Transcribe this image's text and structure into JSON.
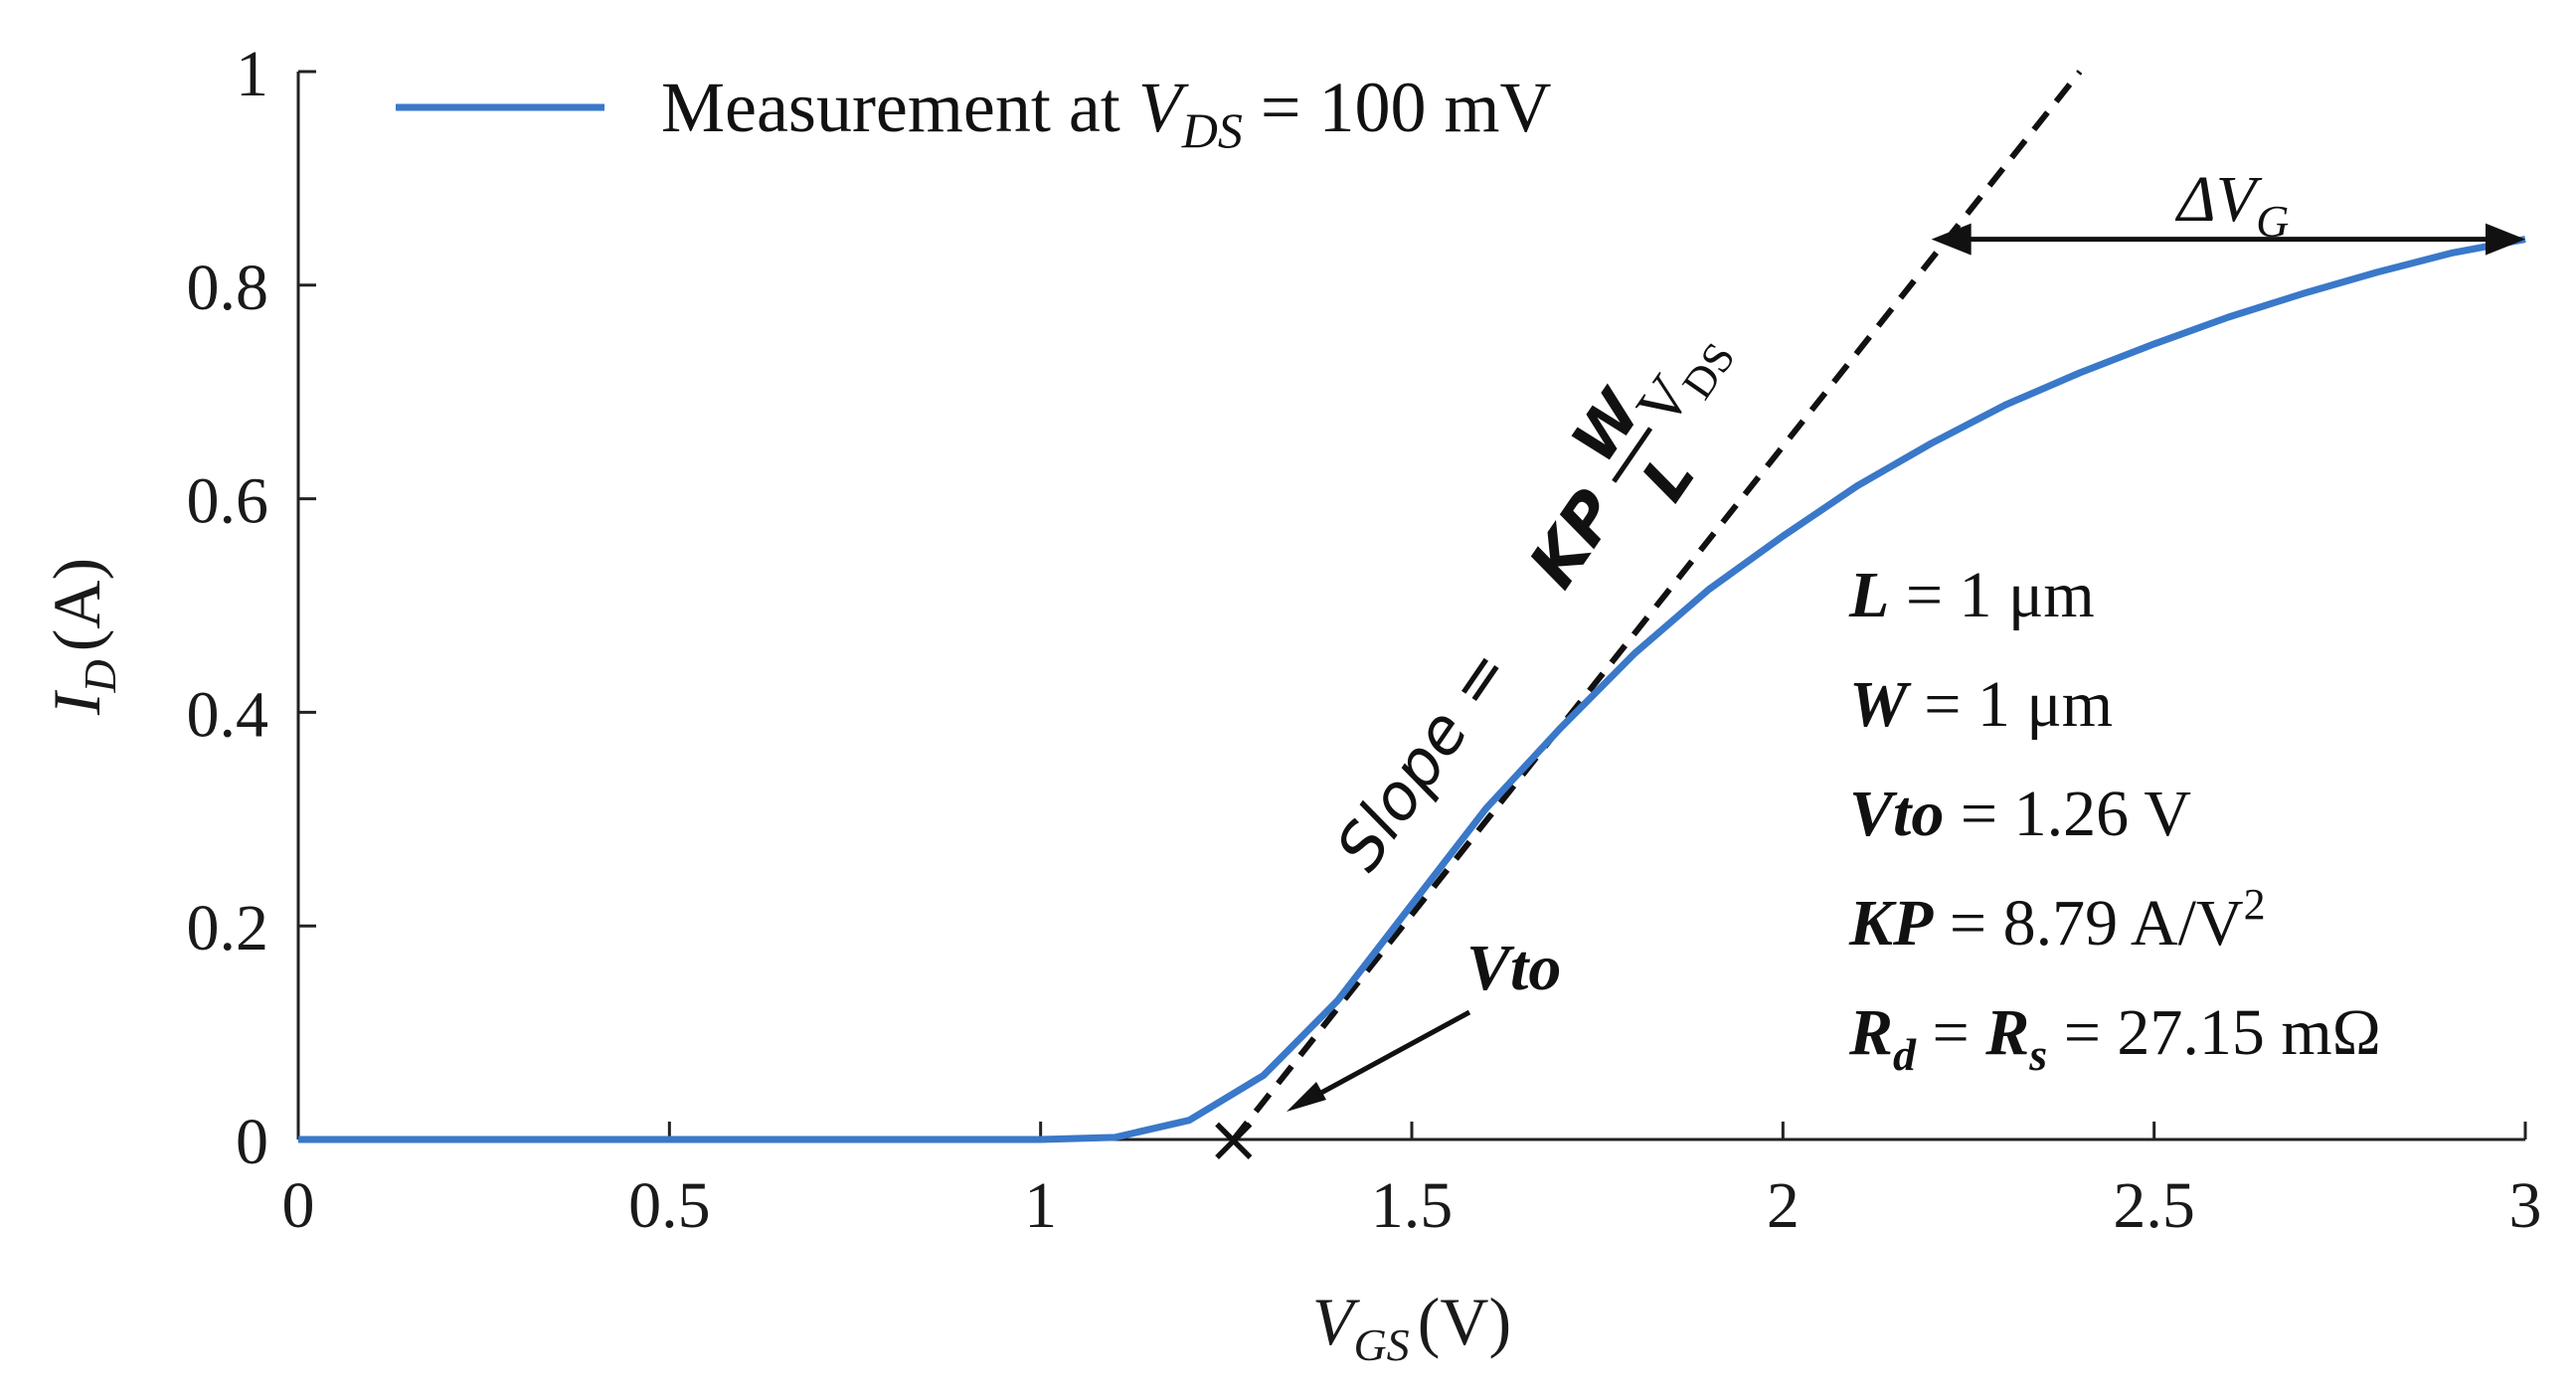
{
  "chart_data": {
    "type": "line",
    "title": "",
    "xlabel": {
      "main": "V",
      "sub": "GS",
      "unit": "(V)"
    },
    "ylabel": {
      "main": "I",
      "sub": "D",
      "unit": "(A)"
    },
    "xlim": [
      0,
      3
    ],
    "ylim": [
      0,
      1
    ],
    "x_ticks": [
      "0",
      "0.5",
      "1",
      "1.5",
      "2",
      "2.5",
      "3"
    ],
    "y_ticks": [
      "0",
      "0.2",
      "0.4",
      "0.6",
      "0.8",
      "1"
    ],
    "grid": false,
    "legend": {
      "position": "top-left",
      "label_prefix": "Measurement at ",
      "label_var": "V",
      "label_sub": "DS",
      "label_suffix": " = 100 mV",
      "color": "#3a78c9"
    },
    "series": [
      {
        "name": "Measurement at VDS = 100 mV",
        "color": "#3a78c9",
        "x": [
          0,
          0.5,
          1.0,
          1.1,
          1.2,
          1.3,
          1.4,
          1.5,
          1.6,
          1.7,
          1.8,
          1.9,
          2.0,
          2.1,
          2.2,
          2.3,
          2.4,
          2.5,
          2.6,
          2.7,
          2.8,
          2.9,
          3.0
        ],
        "y": [
          0,
          0,
          0,
          0.002,
          0.018,
          0.06,
          0.13,
          0.22,
          0.31,
          0.385,
          0.455,
          0.515,
          0.565,
          0.612,
          0.652,
          0.688,
          0.718,
          0.745,
          0.77,
          0.792,
          0.812,
          0.83,
          0.843
        ]
      }
    ],
    "tangent_line": {
      "style": "dashed",
      "color": "#111111",
      "x": [
        1.26,
        2.4
      ],
      "y": [
        0,
        1.0
      ]
    },
    "vto_marker": {
      "x": 1.26,
      "y": 0,
      "symbol": "×"
    },
    "annotations": {
      "vto_label": "Vto",
      "delta_vg": {
        "prefix": "ΔV",
        "sub": "G",
        "y": 0.843,
        "x_from": 2.2,
        "x_to": 3.0
      },
      "slope": {
        "prefix": "Slope = ",
        "kp": "KP",
        "frac_num": "W",
        "frac_den": "L",
        "suffix": "V",
        "suffix_sub": "DS"
      },
      "params": [
        {
          "name": "L",
          "value": " = 1 μm"
        },
        {
          "name": "W",
          "value": " = 1 μm"
        },
        {
          "name": "Vto",
          "value": " = 1.26 V"
        },
        {
          "name": "KP",
          "value": " = 8.79 A/V",
          "sup": "2"
        },
        {
          "name": "R",
          "name_sub": "d",
          "mid": " = ",
          "name2": "R",
          "name2_sub": "s",
          "value": " = 27.15 mΩ"
        }
      ]
    }
  }
}
